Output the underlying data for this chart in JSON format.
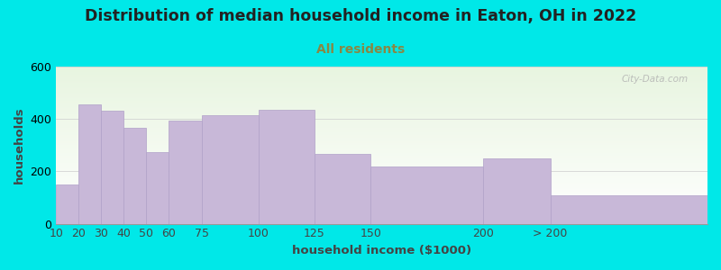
{
  "title": "Distribution of median household income in Eaton, OH in 2022",
  "subtitle": "All residents",
  "xlabel": "household income ($1000)",
  "ylabel": "households",
  "categories": [
    "10",
    "20",
    "30",
    "40",
    "50",
    "60",
    "75",
    "100",
    "125",
    "150",
    "200",
    "> 200"
  ],
  "values": [
    150,
    455,
    430,
    365,
    275,
    395,
    415,
    435,
    265,
    220,
    250,
    110
  ],
  "bar_color": "#c8b8d8",
  "bar_edge_color": "#b0a0c8",
  "background_color": "#00e8e8",
  "plot_bg_colors": [
    "#e8f5e0",
    "#f8fff8",
    "#ffffff"
  ],
  "title_color": "#222222",
  "subtitle_color": "#888844",
  "axis_color": "#444444",
  "ylim": [
    0,
    600
  ],
  "yticks": [
    0,
    200,
    400,
    600
  ],
  "watermark": "City-Data.com",
  "title_fontsize": 12.5,
  "subtitle_fontsize": 10,
  "label_fontsize": 9.5,
  "tick_fontsize": 9,
  "bar_left_edges": [
    10,
    20,
    30,
    40,
    50,
    60,
    75,
    100,
    125,
    150,
    200,
    230
  ],
  "bar_widths": [
    10,
    10,
    10,
    10,
    10,
    15,
    25,
    25,
    25,
    50,
    30,
    70
  ],
  "xlim": [
    10,
    300
  ]
}
